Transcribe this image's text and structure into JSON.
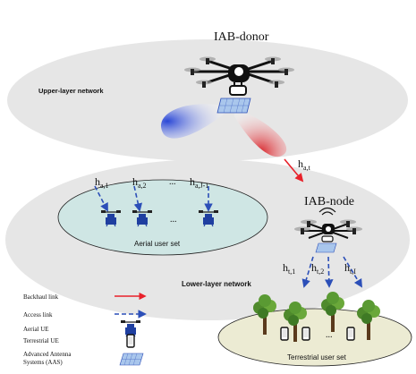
{
  "titles": {
    "iab_donor": "IAB-donor",
    "iab_node": "IAB-node",
    "upper_layer": "Upper-layer network",
    "lower_layer": "Lower-layer network",
    "aerial_user_set": "Aerial user set",
    "terrestrial_user_set": "Terrestrial user set"
  },
  "channels": {
    "backhaul": {
      "main": "h",
      "sub": "a,t"
    },
    "aerial": [
      {
        "main": "h",
        "sub": "a,1"
      },
      {
        "main": "h",
        "sub": "a,2"
      },
      {
        "main": "h",
        "sub": "a,J-1"
      }
    ],
    "terrestrial": [
      {
        "main": "h",
        "sub": "t,1"
      },
      {
        "main": "h",
        "sub": "t,2"
      },
      {
        "main": "h",
        "sub": "t,I"
      }
    ],
    "ellipsis": "..."
  },
  "legend": {
    "items": [
      {
        "label": "Backhaul link",
        "icon": "red-arrow-icon"
      },
      {
        "label": "Access link",
        "icon": "blue-dashed-arrow-icon"
      },
      {
        "label": "Aerial UE",
        "icon": "aerial-ue-icon"
      },
      {
        "label": "Terrestrial UE",
        "icon": "phone-icon"
      },
      {
        "label": "Advanced Antenna",
        "label2": "Systems (AAS)",
        "icon": "antenna-panel-icon"
      }
    ]
  },
  "colors": {
    "backhaul": "#e8212a",
    "access": "#2c4fb8",
    "aerial_set_fill": "#cfe6e4",
    "terrestrial_set_fill": "#ecebd3",
    "layer_fill": "#e6e6e6"
  }
}
